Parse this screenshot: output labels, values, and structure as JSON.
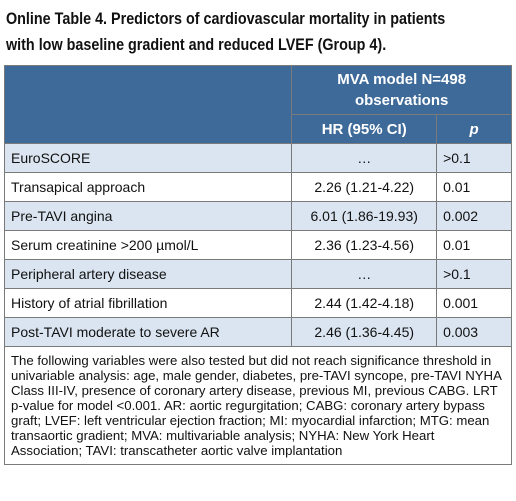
{
  "title": [
    "Online Table 4. Predictors of cardiovascular mortality in patients",
    "with low baseline gradient and reduced LVEF (Group 4)."
  ],
  "table": {
    "group_header": "MVA model N=498 observations",
    "columns": [
      "HR (95% CI)",
      "p"
    ],
    "rows": [
      [
        "EuroSCORE",
        "…",
        ">0.1"
      ],
      [
        "Transapical approach",
        "2.26 (1.21-4.22)",
        "0.01"
      ],
      [
        "Pre-TAVI angina",
        "6.01 (1.86-19.93)",
        "0.002"
      ],
      [
        "Serum creatinine >200 µmol/L",
        "2.36 (1.23-4.56)",
        "0.01"
      ],
      [
        "Peripheral artery disease",
        "…",
        ">0.1"
      ],
      [
        "History of atrial fibrillation",
        "2.44 (1.42-4.18)",
        "0.001"
      ],
      [
        "Post-TAVI moderate to severe AR",
        "2.46 (1.36-4.45)",
        "0.003"
      ]
    ],
    "footnote": "The following variables were also tested but did not reach significance threshold in univariable analysis: age, male gender, diabetes, pre-TAVI syncope, pre-TAVI NYHA Class III-IV, presence of coronary artery disease, previous MI, previous CABG. LRT p-value for model <0.001. AR: aortic regurgitation; CABG: coronary artery bypass graft; LVEF: left ventricular ejection fraction; MI: myocardial infarction; MTG: mean transaortic gradient; MVA: multivariable analysis; NYHA: New York Heart Association; TAVI: transcatheter aortic valve implantation"
  }
}
